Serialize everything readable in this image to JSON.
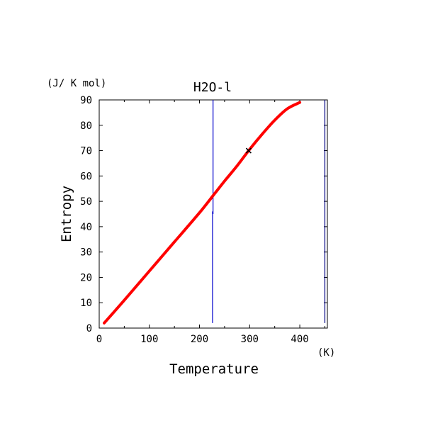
{
  "chart_data": {
    "type": "line",
    "title": "H2O-l",
    "xlabel": "Temperature",
    "ylabel": "Entropy",
    "x_unit": "(K)",
    "y_unit": "(J/ K mol)",
    "xlim": [
      0,
      455
    ],
    "ylim": [
      0,
      90
    ],
    "xticks": [
      0,
      100,
      200,
      300,
      400
    ],
    "yticks": [
      0,
      10,
      20,
      30,
      40,
      50,
      60,
      70,
      80,
      90
    ],
    "grid": false,
    "series": [
      {
        "color": "#ff0000",
        "x": [
          10,
          50,
          100,
          150,
          200,
          230,
          250,
          275,
          300,
          325,
          350,
          375,
          400
        ],
        "y": [
          2,
          11,
          22.5,
          34,
          45.5,
          53,
          58,
          64,
          70.5,
          76.5,
          82,
          86.5,
          89
        ]
      }
    ],
    "marker": {
      "x": 298,
      "y": 70,
      "symbol": "x",
      "color": "#000000"
    },
    "vertical_lines": [
      {
        "color": "#0000cc",
        "x": 226,
        "y_from": 2,
        "y_to": 46
      },
      {
        "color": "#0000cc",
        "x": 227,
        "y_from": 45,
        "y_to": 90
      },
      {
        "color": "#000080",
        "x": 450,
        "y_from": 2,
        "y_to": 90
      }
    ]
  }
}
